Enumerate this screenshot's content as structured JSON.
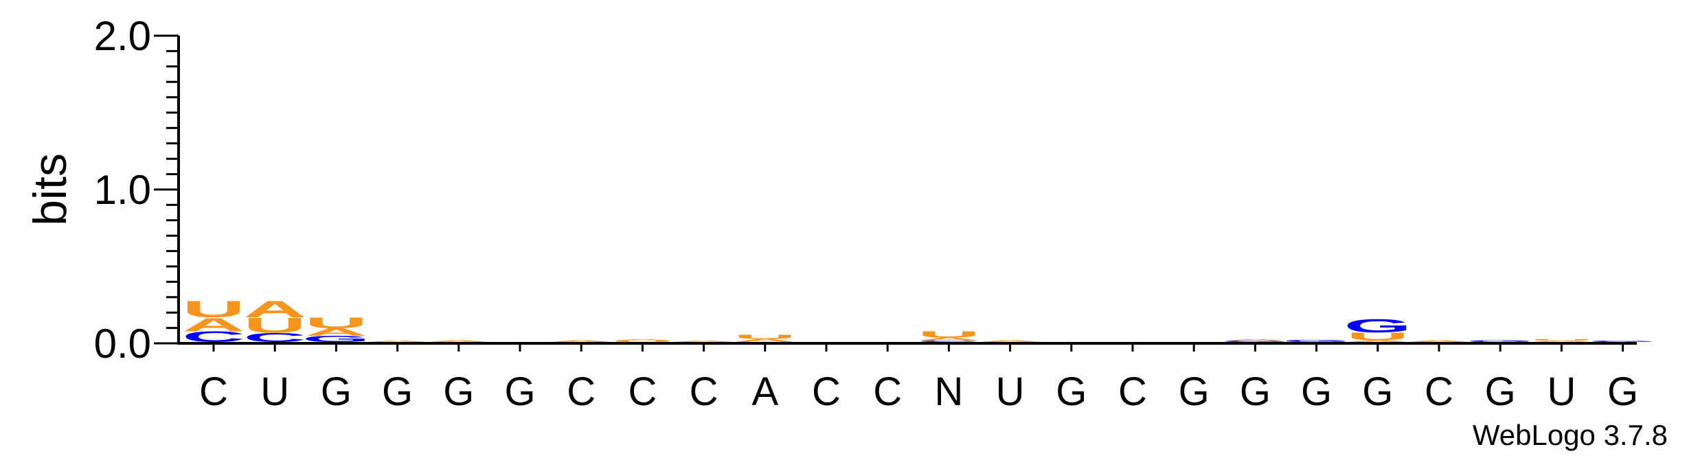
{
  "chart_data": {
    "type": "sequence-logo",
    "ylabel": "bits",
    "ylim": [
      0,
      2.0
    ],
    "yticks": [
      "0.0",
      "1.0",
      "2.0"
    ],
    "credit": "WebLogo 3.7.8",
    "colors": {
      "A": "#f7941d",
      "U": "#f7941d",
      "C": "#0000ff",
      "G": "#0000ff",
      "N": "#f7941d"
    },
    "positions": [
      {
        "label": "C",
        "stack": [
          {
            "letter": "C",
            "bits": 0.07
          },
          {
            "letter": "A",
            "bits": 0.09
          },
          {
            "letter": "U",
            "bits": 0.11
          }
        ]
      },
      {
        "label": "U",
        "stack": [
          {
            "letter": "C",
            "bits": 0.06
          },
          {
            "letter": "U",
            "bits": 0.1
          },
          {
            "letter": "A",
            "bits": 0.11
          }
        ]
      },
      {
        "label": "G",
        "stack": [
          {
            "letter": "G",
            "bits": 0.04
          },
          {
            "letter": "A",
            "bits": 0.05
          },
          {
            "letter": "U",
            "bits": 0.07
          }
        ]
      },
      {
        "label": "G",
        "stack": [
          {
            "letter": "A",
            "bits": 0.01
          }
        ]
      },
      {
        "label": "G",
        "stack": [
          {
            "letter": "A",
            "bits": 0.012
          }
        ]
      },
      {
        "label": "G",
        "stack": []
      },
      {
        "label": "C",
        "stack": [
          {
            "letter": "A",
            "bits": 0.012
          }
        ]
      },
      {
        "label": "C",
        "stack": [
          {
            "letter": "U",
            "bits": 0.008
          },
          {
            "letter": "A",
            "bits": 0.01
          }
        ]
      },
      {
        "label": "C",
        "stack": [
          {
            "letter": "A",
            "bits": 0.01
          }
        ]
      },
      {
        "label": "A",
        "stack": [
          {
            "letter": "A",
            "bits": 0.02
          },
          {
            "letter": "U",
            "bits": 0.025
          }
        ]
      },
      {
        "label": "C",
        "stack": []
      },
      {
        "label": "C",
        "stack": []
      },
      {
        "label": "N",
        "stack": [
          {
            "letter": "C",
            "bits": 0.01
          },
          {
            "letter": "A",
            "bits": 0.02
          },
          {
            "letter": "U",
            "bits": 0.04
          }
        ]
      },
      {
        "label": "U",
        "stack": [
          {
            "letter": "A",
            "bits": 0.012
          }
        ]
      },
      {
        "label": "G",
        "stack": []
      },
      {
        "label": "C",
        "stack": []
      },
      {
        "label": "G",
        "stack": []
      },
      {
        "label": "G",
        "stack": [
          {
            "letter": "G",
            "bits": 0.008
          },
          {
            "letter": "A",
            "bits": 0.01
          }
        ]
      },
      {
        "label": "G",
        "stack": [
          {
            "letter": "G",
            "bits": 0.014
          }
        ]
      },
      {
        "label": "G",
        "stack": [
          {
            "letter": "A",
            "bits": 0.012
          },
          {
            "letter": "U",
            "bits": 0.05
          },
          {
            "letter": "G",
            "bits": 0.09
          }
        ]
      },
      {
        "label": "C",
        "stack": [
          {
            "letter": "A",
            "bits": 0.012
          }
        ]
      },
      {
        "label": "G",
        "stack": [
          {
            "letter": "G",
            "bits": 0.012
          }
        ]
      },
      {
        "label": "U",
        "stack": [
          {
            "letter": "A",
            "bits": 0.01
          },
          {
            "letter": "U",
            "bits": 0.01
          }
        ]
      },
      {
        "label": "G",
        "stack": [
          {
            "letter": "G",
            "bits": 0.008
          }
        ]
      }
    ]
  }
}
